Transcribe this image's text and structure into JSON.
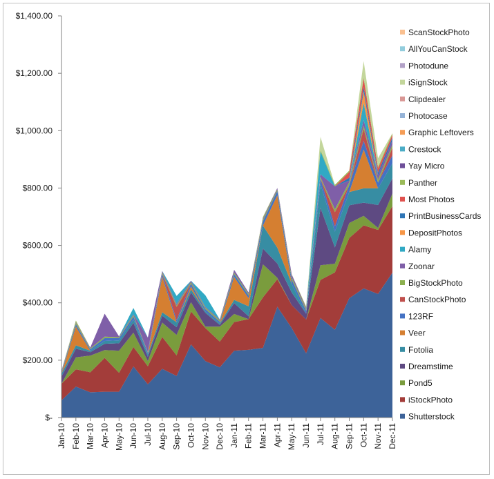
{
  "chart_data": {
    "type": "area",
    "stacked": true,
    "categories": [
      "Jan-10",
      "Feb-10",
      "Mar-10",
      "Apr-10",
      "May-10",
      "Jun-10",
      "Jul-10",
      "Aug-10",
      "Sep-10",
      "Oct-10",
      "Nov-10",
      "Dec-10",
      "Jan-11",
      "Feb-11",
      "Mar-11",
      "Apr-11",
      "May-11",
      "Jun-11",
      "Jul-11",
      "Aug-11",
      "Sep-11",
      "Oct-11",
      "Nov-11",
      "Dec-11"
    ],
    "x_tick_labels": [
      "Jan-10",
      "Feb-10",
      "Mar-10",
      "Apr-10",
      "May-10",
      "Jun-10",
      "Jul-10",
      "Aug-10",
      "Sep-10",
      "Oct-10",
      "Nov-10",
      "Dec-10",
      "Jan-11",
      "Feb-11",
      "Mar-11",
      "Apr-11",
      "May-11",
      "Jun-11",
      "Jul-11",
      "Aug-11",
      "Sep-11",
      "Oct-11",
      "Nov-11",
      "Dec-11"
    ],
    "x": [
      0,
      1,
      2,
      3,
      4,
      5,
      6,
      7,
      8,
      9,
      10,
      11,
      12,
      13,
      14,
      15,
      16,
      17,
      18,
      19,
      20,
      21,
      22,
      23
    ],
    "y_ticks": [
      0,
      200,
      400,
      600,
      800,
      1000,
      1200,
      1400
    ],
    "y_tick_labels": [
      "$-",
      "$200.00",
      "$400.00",
      "$600.00",
      "$800.00",
      "$1,000.00",
      "$1,200.00",
      "$1,400.00"
    ],
    "ylim": [
      0,
      1400
    ],
    "legend_position": "right",
    "series": [
      {
        "name": "Shutterstock",
        "color": "#3D6399",
        "values": [
          60,
          108,
          88,
          90,
          90,
          178,
          116,
          170,
          145,
          255,
          197,
          175,
          233,
          236,
          243,
          386,
          312,
          224,
          347,
          306,
          416,
          450,
          431,
          505
        ]
      },
      {
        "name": "iStockPhoto",
        "color": "#A33D3A",
        "values": [
          58,
          60,
          70,
          118,
          66,
          68,
          63,
          111,
          72,
          115,
          115,
          90,
          100,
          107,
          176,
          96,
          80,
          118,
          133,
          200,
          210,
          220,
          223,
          232
        ]
      },
      {
        "name": "Pond5",
        "color": "#7A9C3D",
        "values": [
          0,
          42,
          58,
          27,
          77,
          50,
          18,
          50,
          71,
          32,
          5,
          52,
          28,
          0,
          115,
          5,
          0,
          0,
          51,
          30,
          52,
          33,
          7,
          44
        ]
      },
      {
        "name": "Dreamstime",
        "color": "#5E4A82",
        "values": [
          25,
          30,
          12,
          22,
          26,
          34,
          15,
          24,
          27,
          34,
          48,
          6,
          38,
          10,
          55,
          50,
          44,
          20,
          200,
          57,
          62,
          46,
          80,
          53
        ]
      },
      {
        "name": "Fotolia",
        "color": "#378DA3",
        "values": [
          10,
          12,
          5,
          10,
          10,
          12,
          8,
          12,
          17,
          11,
          5,
          5,
          11,
          35,
          80,
          55,
          30,
          0,
          82,
          55,
          46,
          50,
          58,
          52
        ]
      },
      {
        "name": "Veer",
        "color": "#D57F31",
        "values": [
          0,
          65,
          0,
          0,
          0,
          0,
          0,
          124,
          0,
          10,
          0,
          0,
          80,
          28,
          0,
          183,
          0,
          0,
          0,
          0,
          0,
          135,
          0,
          0
        ]
      },
      {
        "name": "123RF",
        "color": "#4472C4",
        "values": [
          5,
          8,
          5,
          10,
          8,
          10,
          6,
          10,
          8,
          10,
          8,
          6,
          10,
          10,
          15,
          15,
          15,
          10,
          20,
          18,
          25,
          30,
          20,
          28
        ]
      },
      {
        "name": "CanStockPhoto",
        "color": "#C0504D",
        "values": [
          0,
          0,
          0,
          0,
          0,
          0,
          0,
          0,
          46,
          0,
          0,
          0,
          0,
          0,
          0,
          0,
          0,
          0,
          0,
          50,
          0,
          43,
          0,
          27
        ]
      },
      {
        "name": "BigStockPhoto",
        "color": "#8CB04F",
        "values": [
          3,
          5,
          3,
          5,
          3,
          5,
          3,
          5,
          5,
          5,
          5,
          5,
          5,
          5,
          5,
          5,
          8,
          5,
          5,
          10,
          10,
          10,
          10,
          10
        ]
      },
      {
        "name": "Zoonar",
        "color": "#7F5FA8",
        "values": [
          3,
          3,
          3,
          80,
          3,
          3,
          50,
          5,
          5,
          5,
          3,
          3,
          10,
          5,
          5,
          5,
          10,
          5,
          10,
          80,
          5,
          20,
          15,
          15
        ]
      },
      {
        "name": "Alamy",
        "color": "#31A9C4",
        "values": [
          0,
          0,
          0,
          0,
          0,
          22,
          0,
          0,
          28,
          0,
          40,
          0,
          0,
          0,
          0,
          0,
          0,
          0,
          80,
          0,
          0,
          60,
          0,
          0
        ]
      },
      {
        "name": "DepositPhotos",
        "color": "#F79646",
        "values": [
          0,
          0,
          0,
          0,
          0,
          0,
          0,
          0,
          0,
          0,
          0,
          0,
          0,
          0,
          0,
          0,
          0,
          0,
          0,
          0,
          0,
          40,
          0,
          0
        ]
      },
      {
        "name": "PrintBusinessCards",
        "color": "#2E75B6",
        "values": [
          0,
          0,
          0,
          0,
          0,
          0,
          0,
          0,
          0,
          0,
          0,
          0,
          0,
          0,
          0,
          0,
          0,
          0,
          0,
          0,
          10,
          15,
          10,
          10
        ]
      },
      {
        "name": "Most Photos",
        "color": "#E0524F",
        "values": [
          0,
          0,
          0,
          0,
          0,
          0,
          0,
          0,
          0,
          0,
          0,
          0,
          0,
          0,
          0,
          0,
          0,
          0,
          0,
          0,
          20,
          30,
          15,
          10
        ]
      },
      {
        "name": "Panther",
        "color": "#9BBB59",
        "values": [
          0,
          5,
          0,
          0,
          0,
          0,
          0,
          0,
          0,
          0,
          0,
          0,
          0,
          0,
          5,
          0,
          0,
          5,
          5,
          5,
          5,
          5,
          5,
          5
        ]
      },
      {
        "name": "Yay Micro",
        "color": "#6E4F99",
        "values": [
          0,
          0,
          0,
          0,
          0,
          0,
          0,
          0,
          0,
          0,
          0,
          0,
          0,
          0,
          0,
          0,
          0,
          0,
          0,
          0,
          0,
          0,
          0,
          0
        ]
      },
      {
        "name": "Crestock",
        "color": "#4BACC6",
        "values": [
          0,
          0,
          0,
          0,
          0,
          0,
          0,
          0,
          0,
          0,
          0,
          0,
          0,
          0,
          0,
          0,
          0,
          0,
          0,
          0,
          0,
          0,
          0,
          0
        ]
      },
      {
        "name": "Graphic Leftovers",
        "color": "#F59D56",
        "values": [
          0,
          0,
          0,
          0,
          0,
          0,
          0,
          0,
          0,
          0,
          0,
          0,
          0,
          0,
          0,
          0,
          0,
          0,
          0,
          0,
          0,
          0,
          0,
          0
        ]
      },
      {
        "name": "Photocase",
        "color": "#95B3D7",
        "values": [
          0,
          0,
          0,
          0,
          0,
          0,
          0,
          0,
          0,
          0,
          0,
          0,
          0,
          0,
          0,
          0,
          0,
          0,
          0,
          0,
          0,
          0,
          0,
          0
        ]
      },
      {
        "name": "Clipdealer",
        "color": "#D99795",
        "values": [
          0,
          0,
          0,
          0,
          0,
          0,
          0,
          0,
          0,
          0,
          0,
          0,
          0,
          0,
          0,
          0,
          0,
          0,
          0,
          0,
          0,
          0,
          0,
          0
        ]
      },
      {
        "name": "iSignStock",
        "color": "#C3D69B",
        "values": [
          0,
          0,
          0,
          0,
          0,
          0,
          0,
          0,
          0,
          0,
          0,
          0,
          0,
          0,
          0,
          0,
          0,
          0,
          45,
          0,
          0,
          55,
          30,
          0
        ]
      },
      {
        "name": "Photodune",
        "color": "#B2A1C7",
        "values": [
          0,
          0,
          0,
          0,
          0,
          0,
          0,
          0,
          0,
          0,
          0,
          0,
          0,
          0,
          0,
          0,
          0,
          0,
          0,
          0,
          0,
          0,
          0,
          0
        ]
      },
      {
        "name": "AllYouCanStock",
        "color": "#93CDDD",
        "values": [
          0,
          0,
          0,
          0,
          0,
          0,
          0,
          0,
          0,
          0,
          0,
          0,
          0,
          0,
          0,
          0,
          0,
          0,
          0,
          0,
          0,
          0,
          0,
          0
        ]
      },
      {
        "name": "ScanStockPhoto",
        "color": "#FAC090",
        "values": [
          0,
          0,
          0,
          0,
          0,
          0,
          0,
          0,
          0,
          0,
          0,
          0,
          0,
          0,
          0,
          0,
          0,
          0,
          0,
          0,
          0,
          0,
          0,
          0
        ]
      }
    ]
  }
}
